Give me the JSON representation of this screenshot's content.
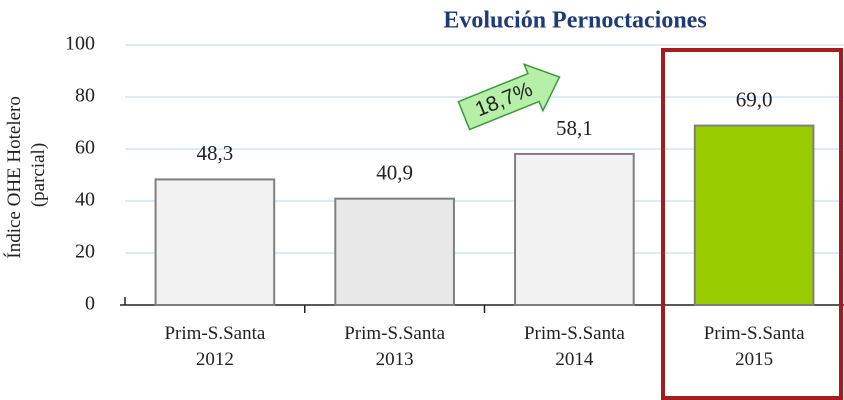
{
  "chart_data": {
    "type": "bar",
    "title": "Evolución Pernoctaciones",
    "y_label": [
      "Índice OHE Hotelero",
      "(parcial)"
    ],
    "categories": [
      [
        "Prim-S.Santa",
        "2012"
      ],
      [
        "Prim-S.Santa",
        "2013"
      ],
      [
        "Prim-S.Santa",
        "2014"
      ],
      [
        "Prim-S.Santa",
        "2015"
      ]
    ],
    "values": [
      48.3,
      40.9,
      58.1,
      69.0
    ],
    "value_labels": [
      "48,3",
      "40,9",
      "58,1",
      "69,0"
    ],
    "colors": [
      "#f2f2f2",
      "#e8e8e8",
      "#f2f2f2",
      "#99cc00"
    ],
    "annotations": [
      "18,7%"
    ],
    "ylim": [
      0,
      100
    ],
    "yticks": [
      0,
      20,
      40,
      60,
      80,
      100
    ],
    "grid": true
  }
}
